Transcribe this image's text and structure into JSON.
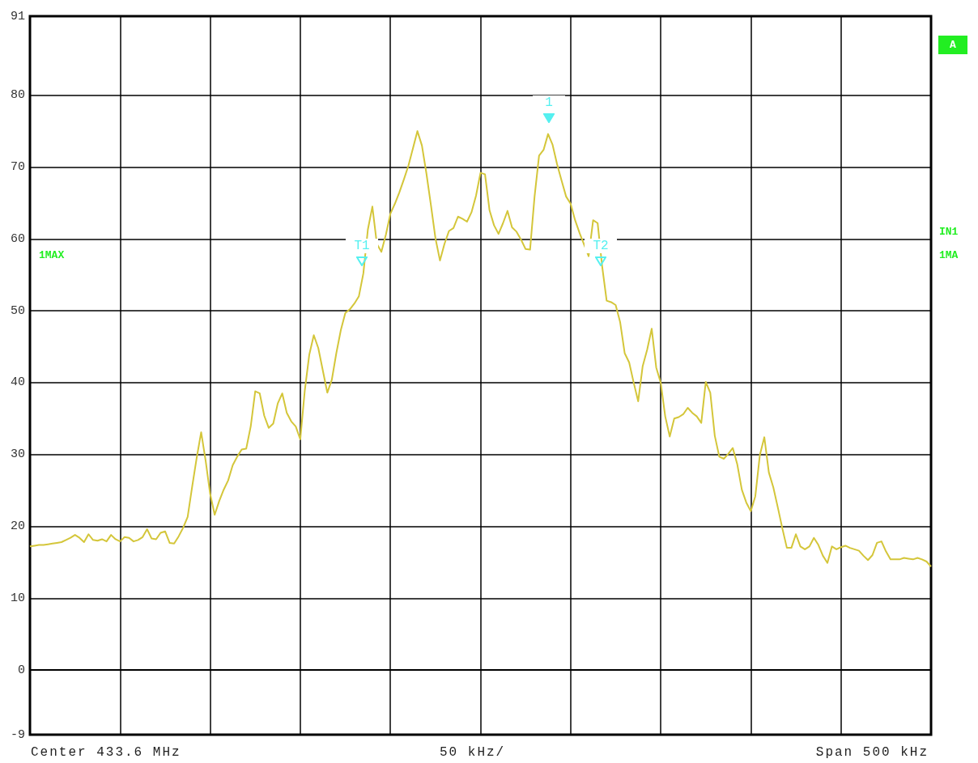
{
  "chart_data": {
    "type": "line",
    "categories": [
      null,
      null,
      null,
      null,
      null,
      null,
      null,
      null,
      null,
      null,
      null,
      null,
      null,
      null,
      null,
      null,
      null,
      null,
      null,
      null,
      null,
      null,
      null,
      null,
      null,
      null,
      null,
      null,
      null,
      null,
      null,
      null,
      null,
      null,
      null,
      null,
      null,
      null,
      null,
      null,
      null,
      null,
      null,
      null,
      null,
      null,
      null,
      null,
      null,
      null,
      null,
      null,
      null,
      null,
      null,
      null,
      null,
      null,
      null,
      null,
      null,
      null,
      null,
      null,
      null,
      null,
      null,
      null,
      null,
      null,
      null,
      null,
      null,
      null,
      null,
      null,
      null,
      null,
      null,
      null,
      null,
      null,
      null,
      null,
      null,
      null,
      null,
      null,
      null,
      null,
      null,
      null,
      null,
      null,
      null,
      null,
      null,
      null,
      null,
      null,
      null,
      null,
      null,
      null,
      null,
      null,
      null,
      null,
      null,
      null,
      null,
      null,
      null,
      null,
      null,
      null,
      null,
      null,
      null,
      null,
      null,
      null,
      null,
      null,
      null,
      null,
      null,
      null,
      null,
      null,
      null,
      null,
      null,
      null,
      null,
      null,
      null,
      null,
      null,
      null,
      null,
      null,
      null,
      null,
      null,
      null,
      null,
      null,
      null,
      null,
      null,
      null,
      null,
      null,
      null,
      null,
      null,
      null,
      null,
      null,
      null,
      null,
      null,
      null,
      null,
      null,
      null,
      null,
      null,
      null,
      null,
      null,
      null,
      null,
      null,
      null,
      null,
      null,
      null,
      null,
      null,
      null,
      null,
      null,
      null,
      null,
      null,
      null,
      null,
      null,
      null,
      null,
      null,
      null,
      null,
      null,
      null,
      null,
      null,
      null,
      null
    ],
    "series": [
      {
        "color": "#d4c63a",
        "values": [
          17.2,
          17.3,
          17.4,
          17.4,
          17.5,
          17.6,
          17.7,
          17.8,
          18.1,
          18.4,
          18.8,
          18.4,
          17.8,
          18.9,
          18.1,
          18.0,
          18.2,
          17.9,
          18.8,
          18.2,
          17.9,
          18.5,
          18.4,
          17.9,
          18.1,
          18.5,
          19.6,
          18.3,
          18.2,
          19.1,
          19.3,
          17.7,
          17.6,
          18.6,
          19.8,
          21.3,
          25.5,
          29.5,
          33.1,
          29.1,
          24.5,
          21.6,
          23.5,
          25.1,
          26.4,
          28.5,
          29.7,
          30.7,
          30.8,
          33.9,
          38.8,
          38.5,
          35.4,
          33.7,
          34.3,
          37.1,
          38.5,
          35.8,
          34.6,
          33.9,
          32.1,
          38.9,
          43.9,
          46.6,
          44.8,
          41.7,
          38.6,
          40.4,
          44.1,
          47.3,
          49.7,
          50.2,
          51.0,
          52.0,
          55.2,
          61.3,
          64.5,
          59.3,
          58.2,
          60.6,
          63.5,
          64.9,
          66.5,
          68.3,
          70.2,
          72.6,
          75.0,
          73.0,
          69.1,
          64.7,
          60.1,
          57.0,
          59.3,
          61.1,
          61.5,
          63.1,
          62.8,
          62.4,
          63.7,
          66.0,
          69.2,
          69.0,
          64.0,
          61.9,
          60.7,
          62.2,
          63.9,
          61.6,
          61.0,
          59.9,
          58.6,
          58.5,
          65.9,
          71.6,
          72.4,
          74.6,
          73.1,
          70.4,
          68.1,
          65.9,
          64.9,
          62.6,
          60.8,
          59.2,
          57.6,
          62.6,
          62.2,
          56.2,
          51.4,
          51.2,
          50.8,
          48.4,
          44.1,
          42.8,
          40.0,
          37.4,
          42.3,
          44.6,
          47.5,
          42.1,
          40.0,
          35.3,
          32.5,
          35.0,
          35.2,
          35.6,
          36.5,
          35.8,
          35.3,
          34.4,
          40.1,
          38.6,
          32.6,
          29.7,
          29.4,
          30.1,
          30.9,
          28.6,
          25.1,
          23.3,
          22.1,
          24.2,
          29.9,
          32.4,
          27.5,
          25.4,
          22.6,
          19.7,
          17.0,
          17.0,
          18.9,
          17.2,
          16.8,
          17.2,
          18.4,
          17.4,
          15.9,
          14.9,
          17.2,
          16.8,
          17.1,
          17.3,
          17.0,
          16.8,
          16.6,
          15.9,
          15.3,
          16.0,
          17.7,
          17.9,
          16.5,
          15.4,
          15.4,
          15.4,
          15.6,
          15.5,
          15.4,
          15.6,
          15.4,
          15.1,
          14.4
        ]
      }
    ],
    "ylim": [
      -9,
      91
    ],
    "yticks": [
      -9,
      0,
      10,
      20,
      30,
      40,
      50,
      60,
      70,
      80,
      91
    ],
    "tick_labels": "y",
    "grid": true,
    "annotations": [
      "1",
      "T1",
      "T2",
      "1MAX",
      "A",
      "IN1",
      "1MA",
      "Center 433.6 MHz",
      "50 kHz/",
      "Span 500 kHz"
    ]
  }
}
